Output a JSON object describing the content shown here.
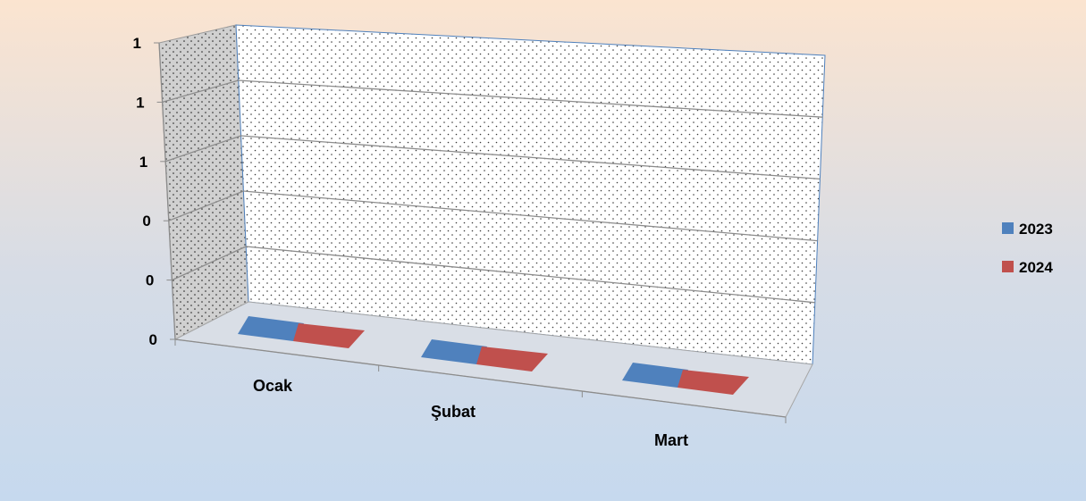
{
  "chart_data": {
    "type": "bar",
    "title": "",
    "xlabel": "",
    "ylabel": "",
    "categories": [
      "Ocak",
      "Şubat",
      "Mart"
    ],
    "series": [
      {
        "name": "2023",
        "values": [
          0,
          0,
          0
        ],
        "color": "#4F81BD"
      },
      {
        "name": "2024",
        "values": [
          0,
          0,
          0
        ],
        "color": "#C0504D"
      }
    ],
    "ylim": [
      0,
      1
    ],
    "y_tick_labels": [
      "0",
      "0",
      "0",
      "1",
      "1",
      "1"
    ],
    "grid": true,
    "legend": "right",
    "style": "3d",
    "background": {
      "top": "#FBE4D0",
      "bottom": "#C6D9EE"
    }
  }
}
